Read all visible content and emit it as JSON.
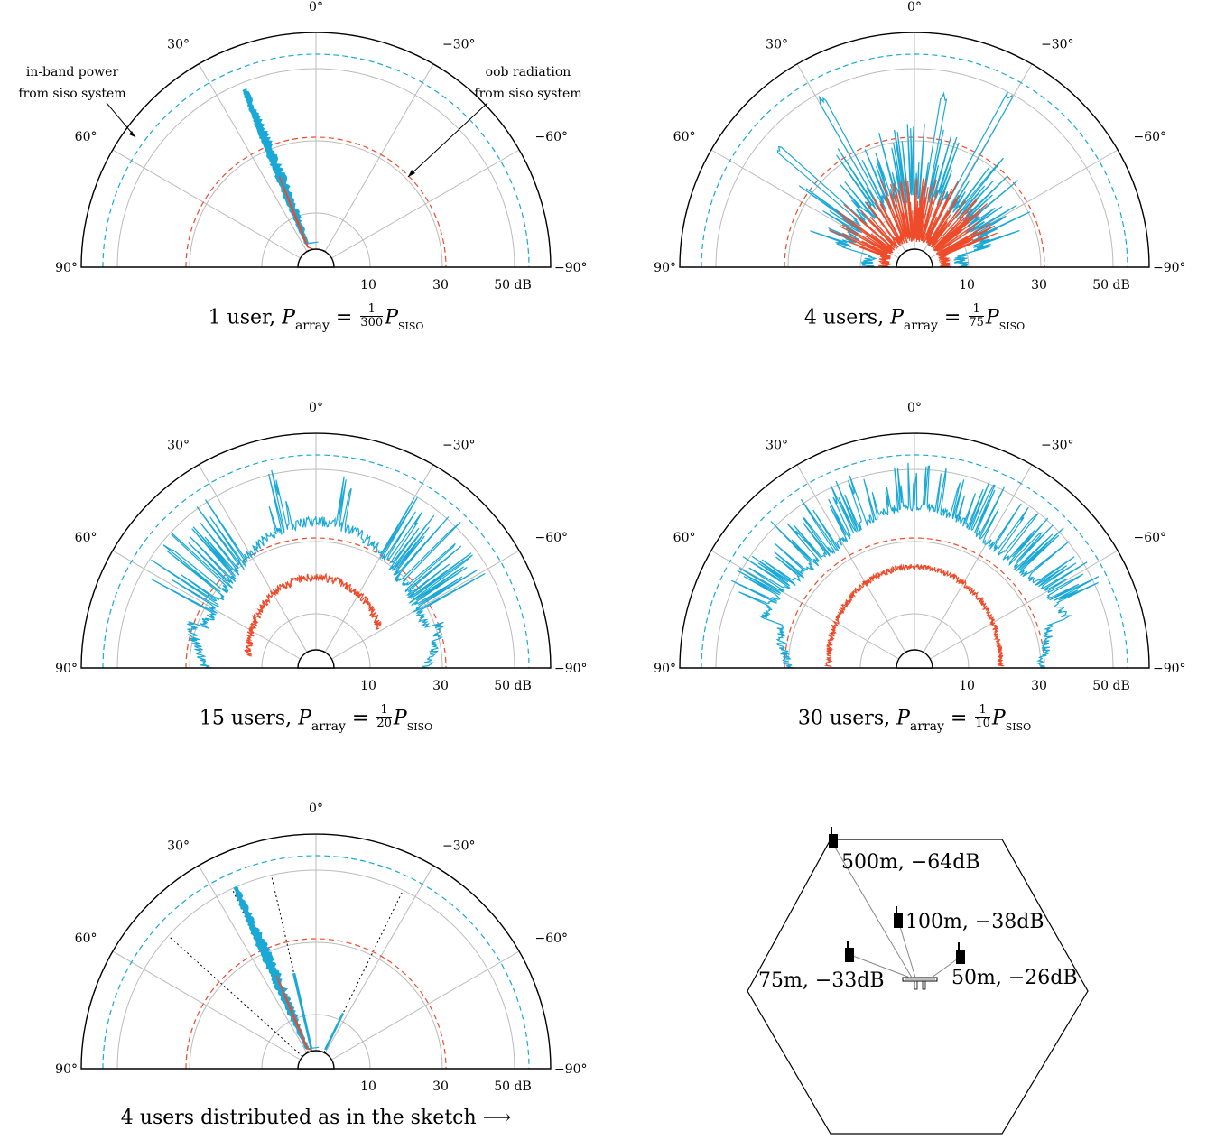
{
  "colors": {
    "inband": "#1aa9d6",
    "oob": "#ee4b2b",
    "grid": "#bbbbbb",
    "frame": "#000000"
  },
  "radial_ticks": [
    "10",
    "30",
    "50 dB"
  ],
  "angle_ticks": [
    "0°",
    "30°",
    "−30°",
    "60°",
    "−60°",
    "90°",
    "−90°"
  ],
  "annotations": {
    "inband_line1": "in-band power",
    "inband_line2": "from siso system",
    "oob_line1": "oob radiation",
    "oob_line2": "from siso system"
  },
  "captions": {
    "p1": {
      "lead": "1 user, ",
      "num": "1",
      "den": "300"
    },
    "p2": {
      "lead": "4 users, ",
      "num": "1",
      "den": "75"
    },
    "p3": {
      "lead": "15 users, ",
      "num": "1",
      "den": "20"
    },
    "p4": {
      "lead": "30 users, ",
      "num": "1",
      "den": "10"
    },
    "p5": {
      "text": "4 users distributed as in the sketch ⟶"
    },
    "P": "P",
    "array": "array",
    "siso": "siso",
    "eq": " = "
  },
  "sketch": {
    "users": [
      {
        "label": "500m, −64dB"
      },
      {
        "label": "100m, −38dB"
      },
      {
        "label": "75m, −33dB"
      },
      {
        "label": "50m, −26dB"
      }
    ]
  },
  "chart_data": [
    {
      "type": "polar",
      "panel": "1 user",
      "angle_range_deg": [
        -90,
        90
      ],
      "radial_range_db": [
        0,
        60
      ],
      "radial_gridlines_db": [
        10,
        30,
        50
      ],
      "reference_lines_db": {
        "inband_siso": 54,
        "oob_siso": 31
      },
      "users_at_deg": [
        22
      ],
      "series": [
        {
          "name": "in-band power",
          "peak_db": 48,
          "floor_db": 0
        },
        {
          "name": "oob radiation",
          "peak_db": 23,
          "floor_db": 0
        }
      ]
    },
    {
      "type": "polar",
      "panel": "4 users",
      "angle_range_deg": [
        -90,
        90
      ],
      "radial_range_db": [
        0,
        60
      ],
      "radial_gridlines_db": [
        10,
        30,
        50
      ],
      "reference_lines_db": {
        "inband_siso": 54,
        "oob_siso": 31
      },
      "users_at_deg": [
        29,
        -29,
        49,
        -10
      ],
      "series": [
        {
          "name": "in-band power",
          "peak_db": 50,
          "floor_db": 10
        },
        {
          "name": "oob radiation",
          "peak_db": 25,
          "floor_db": 3
        }
      ]
    },
    {
      "type": "polar",
      "panel": "15 users",
      "angle_range_deg": [
        -90,
        90
      ],
      "radial_range_db": [
        0,
        60
      ],
      "radial_gridlines_db": [
        10,
        30,
        50
      ],
      "reference_lines_db": {
        "inband_siso": 54,
        "oob_siso": 31
      },
      "series": [
        {
          "name": "in-band power",
          "peak_db": 52,
          "floor_db": 30
        },
        {
          "name": "oob radiation",
          "peak_db": 20,
          "floor_db": 16
        }
      ]
    },
    {
      "type": "polar",
      "panel": "30 users",
      "angle_range_deg": [
        -90,
        90
      ],
      "radial_range_db": [
        0,
        60
      ],
      "radial_gridlines_db": [
        10,
        30,
        50
      ],
      "reference_lines_db": {
        "inband_siso": 54,
        "oob_siso": 31
      },
      "series": [
        {
          "name": "in-band power",
          "peak_db": 52,
          "floor_db": 36
        },
        {
          "name": "oob radiation",
          "peak_db": 22,
          "floor_db": 20
        }
      ]
    },
    {
      "type": "polar",
      "panel": "4 users distributed as in the sketch",
      "angle_range_deg": [
        -90,
        90
      ],
      "radial_range_db": [
        0,
        60
      ],
      "radial_gridlines_db": [
        10,
        30,
        50
      ],
      "reference_lines_db": {
        "inband_siso": 54,
        "oob_siso": 31
      },
      "users_at_deg": [
        25,
        13,
        -26,
        48
      ],
      "series": [
        {
          "name": "in-band power",
          "peak_db": 50,
          "floor_db": 0
        },
        {
          "name": "oob radiation",
          "peak_db": 23,
          "floor_db": 0
        }
      ]
    }
  ]
}
